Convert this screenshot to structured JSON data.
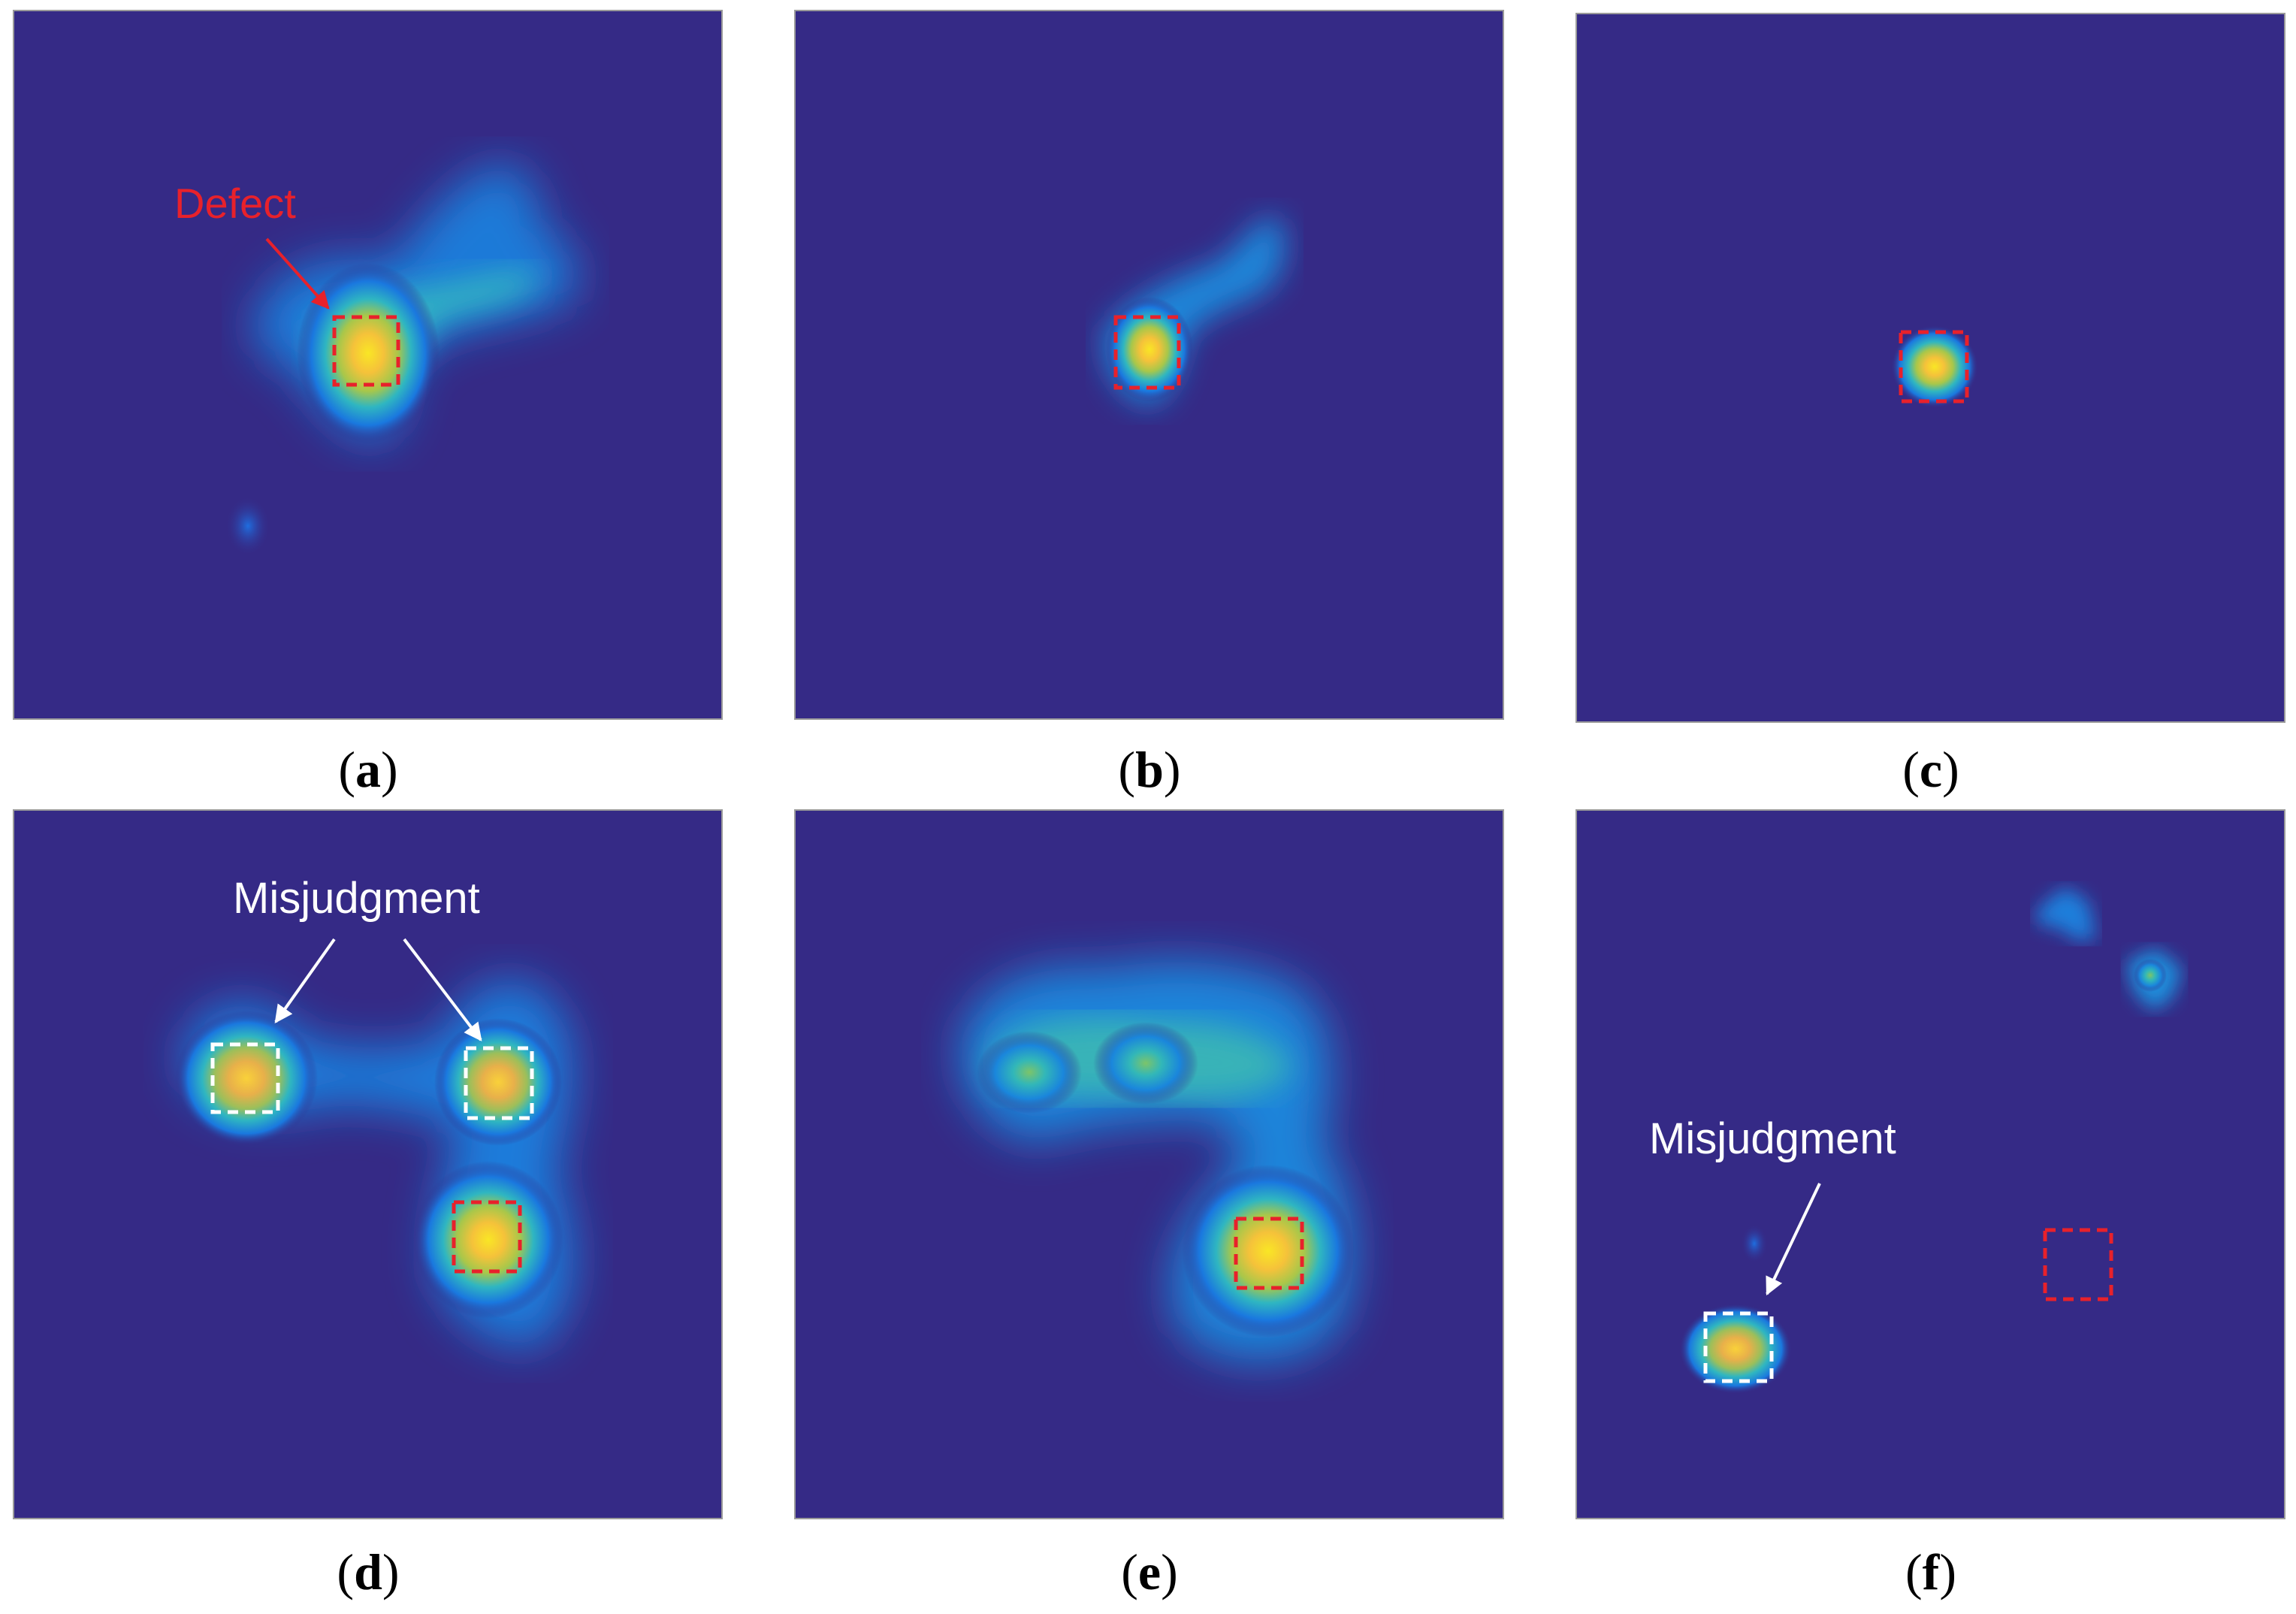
{
  "panels": [
    {
      "letter": "a",
      "annotation": "Defect"
    },
    {
      "letter": "b"
    },
    {
      "letter": "c"
    },
    {
      "letter": "d",
      "annotation": "Misjudgment"
    },
    {
      "letter": "e"
    },
    {
      "letter": "f",
      "annotation": "Misjudgment"
    }
  ],
  "colors": {
    "background": "#352a86",
    "defect_box": "#e8212b",
    "misjudgment_box": "#ffffff",
    "defect_text": "#e8212b",
    "misjudgment_text": "#ffffff"
  },
  "colormap": "parula"
}
